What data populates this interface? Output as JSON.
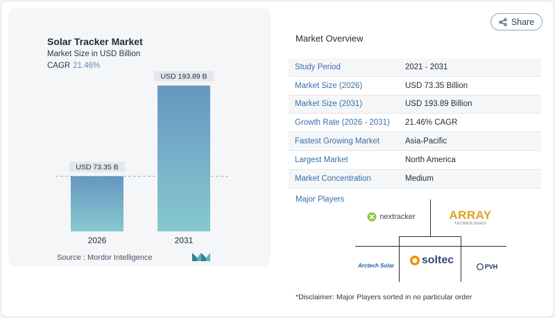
{
  "chart_data": {
    "type": "bar",
    "title": "Solar Tracker Market",
    "subtitle": "Market Size in USD Billion",
    "cagr_label": "CAGR",
    "cagr_value": "21.46%",
    "categories": [
      "2026",
      "2031"
    ],
    "values": [
      73.35,
      193.89
    ],
    "data_labels": [
      "USD 73.35 B",
      "USD 193.89 B"
    ],
    "ylim": [
      0,
      210
    ],
    "colors": {
      "bar_top": "#6796c1",
      "bar_bottom": "#86c9cf",
      "dashed_line": "#8fb1cc",
      "cagr": "#5b8db8"
    }
  },
  "source": "Source :  Mordor Intelligence",
  "share": {
    "label": "Share",
    "icon": "share-icon"
  },
  "overview": {
    "title": "Market Overview",
    "rows": [
      {
        "label": "Study Period",
        "value": "2021 - 2031"
      },
      {
        "label": "Market Size (2026)",
        "value": "USD 73.35 Billion"
      },
      {
        "label": "Market Size (2031)",
        "value": "USD 193.89 Billion"
      },
      {
        "label": "Growth Rate (2026 - 2031)",
        "value": "21.46% CAGR"
      },
      {
        "label": "Fastest Growing Market",
        "value": "Asia-Pacific"
      },
      {
        "label": "Largest Market",
        "value": "North America"
      },
      {
        "label": "Market Concentration",
        "value": "Medium"
      }
    ]
  },
  "players": {
    "title": "Major Players",
    "logos": [
      "nextracker",
      "ARRAY",
      "TECHNOLOGIES",
      "soltec",
      "Arctech Solar",
      "PVH"
    ]
  },
  "disclaimer": "*Disclaimer: Major Players sorted in no particular order",
  "accent": "#3a6ea5"
}
